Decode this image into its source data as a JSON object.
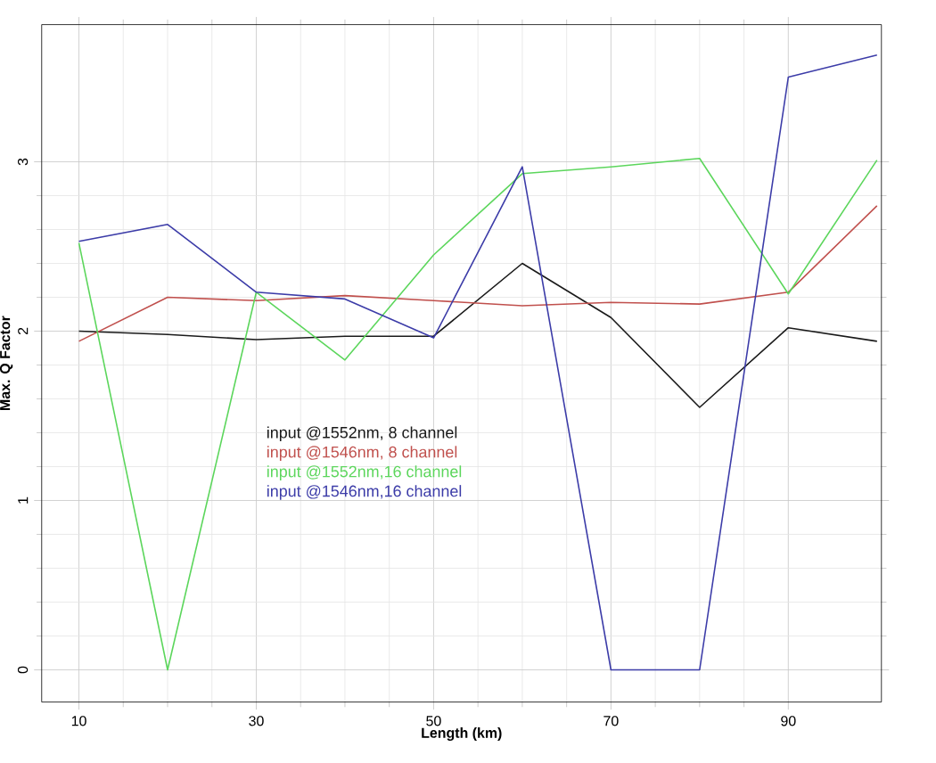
{
  "chart_data": {
    "type": "line",
    "xlabel": "Length (km)",
    "ylabel": "Max. Q Factor",
    "x": [
      10,
      20,
      30,
      40,
      50,
      60,
      70,
      80,
      90,
      100
    ],
    "series": [
      {
        "name": "input @1552nm, 8 channel",
        "color": "#1a1a1a",
        "values": [
          2.0,
          1.98,
          1.95,
          1.97,
          1.97,
          2.4,
          2.08,
          1.55,
          2.02,
          1.94
        ]
      },
      {
        "name": "input @1546nm, 8 channel",
        "color": "#c0504d",
        "values": [
          1.94,
          2.2,
          2.18,
          2.21,
          2.18,
          2.15,
          2.17,
          2.16,
          2.23,
          2.74
        ]
      },
      {
        "name": "input @1552nm,16 channel",
        "color": "#5cd65c",
        "values": [
          2.52,
          0,
          2.23,
          1.83,
          2.45,
          2.93,
          2.97,
          3.02,
          2.22,
          3.01
        ]
      },
      {
        "name": "input @1546nm,16 channel",
        "color": "#3c3ca8",
        "values": [
          2.53,
          2.63,
          2.23,
          2.19,
          1.96,
          2.97,
          0,
          0,
          3.5,
          3.63
        ]
      }
    ],
    "xlim": [
      5.8,
      100.5
    ],
    "ylim": [
      -0.19,
      3.81
    ],
    "xticks": [
      10,
      30,
      50,
      70,
      90
    ],
    "yticks": [
      0,
      1,
      2,
      3
    ],
    "grid": true,
    "legend": "center left",
    "marker": "none",
    "line_style": "solid"
  }
}
